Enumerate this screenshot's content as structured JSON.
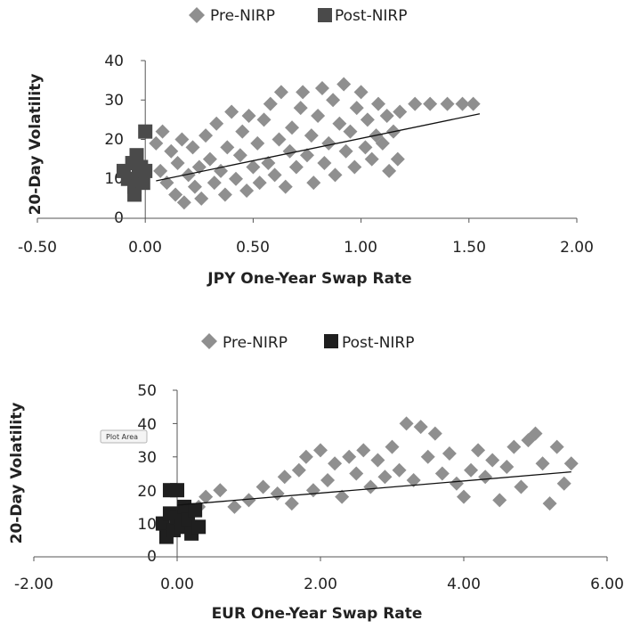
{
  "colors": {
    "pre_nirp": "#8f8f8f",
    "post_nirp_top": "#4a4a4a",
    "post_nirp_bottom": "#1f1f1f",
    "trendline": "#111111",
    "axis": "#555555"
  },
  "tooltip": {
    "label": "Plot Area"
  },
  "chart_data": [
    {
      "type": "scatter",
      "title": "",
      "xlabel": "JPY One-Year Swap Rate",
      "ylabel": "20-Day Volatility",
      "xlim": [
        -0.5,
        2.0
      ],
      "ylim": [
        0,
        40
      ],
      "xticks": [
        -0.5,
        0,
        0.5,
        1.0,
        1.5,
        2.0
      ],
      "xtick_labels": [
        "-0.50",
        "0.00",
        "0.50",
        "1.00",
        "1.50",
        "2.00"
      ],
      "yticks": [
        0,
        10,
        20,
        30,
        40
      ],
      "ytick_labels": [
        "0",
        "10",
        "20",
        "30",
        "40"
      ],
      "legend": {
        "position": "top",
        "entries": [
          "Pre-NIRP",
          "Post-NIRP"
        ]
      },
      "grid": false,
      "trendline": {
        "x": [
          0.05,
          1.55
        ],
        "y": [
          9.5,
          26.5
        ]
      },
      "series": [
        {
          "name": "Pre-NIRP",
          "marker": "diamond",
          "points": [
            [
              0.05,
              19
            ],
            [
              0.07,
              12
            ],
            [
              0.08,
              22
            ],
            [
              0.1,
              9
            ],
            [
              0.12,
              17
            ],
            [
              0.14,
              6
            ],
            [
              0.15,
              14
            ],
            [
              0.17,
              20
            ],
            [
              0.18,
              4
            ],
            [
              0.2,
              11
            ],
            [
              0.22,
              18
            ],
            [
              0.23,
              8
            ],
            [
              0.25,
              13
            ],
            [
              0.26,
              5
            ],
            [
              0.28,
              21
            ],
            [
              0.3,
              15
            ],
            [
              0.32,
              9
            ],
            [
              0.33,
              24
            ],
            [
              0.35,
              12
            ],
            [
              0.37,
              6
            ],
            [
              0.38,
              18
            ],
            [
              0.4,
              27
            ],
            [
              0.42,
              10
            ],
            [
              0.44,
              16
            ],
            [
              0.45,
              22
            ],
            [
              0.47,
              7
            ],
            [
              0.48,
              26
            ],
            [
              0.5,
              13
            ],
            [
              0.52,
              19
            ],
            [
              0.53,
              9
            ],
            [
              0.55,
              25
            ],
            [
              0.57,
              14
            ],
            [
              0.58,
              29
            ],
            [
              0.6,
              11
            ],
            [
              0.62,
              20
            ],
            [
              0.63,
              32
            ],
            [
              0.65,
              8
            ],
            [
              0.67,
              17
            ],
            [
              0.68,
              23
            ],
            [
              0.7,
              13
            ],
            [
              0.72,
              28
            ],
            [
              0.73,
              32
            ],
            [
              0.75,
              16
            ],
            [
              0.77,
              21
            ],
            [
              0.78,
              9
            ],
            [
              0.8,
              26
            ],
            [
              0.82,
              33
            ],
            [
              0.83,
              14
            ],
            [
              0.85,
              19
            ],
            [
              0.87,
              30
            ],
            [
              0.88,
              11
            ],
            [
              0.9,
              24
            ],
            [
              0.92,
              34
            ],
            [
              0.93,
              17
            ],
            [
              0.95,
              22
            ],
            [
              0.97,
              13
            ],
            [
              0.98,
              28
            ],
            [
              1.0,
              32
            ],
            [
              1.02,
              18
            ],
            [
              1.03,
              25
            ],
            [
              1.05,
              15
            ],
            [
              1.07,
              21
            ],
            [
              1.08,
              29
            ],
            [
              1.1,
              19
            ],
            [
              1.12,
              26
            ],
            [
              1.13,
              12
            ],
            [
              1.15,
              22
            ],
            [
              1.17,
              15
            ],
            [
              1.18,
              27
            ],
            [
              1.25,
              29
            ],
            [
              1.32,
              29
            ],
            [
              1.4,
              29
            ],
            [
              1.47,
              29
            ],
            [
              1.52,
              29
            ]
          ]
        },
        {
          "name": "Post-NIRP",
          "marker": "square",
          "points": [
            [
              -0.1,
              12
            ],
            [
              -0.08,
              10
            ],
            [
              -0.06,
              14
            ],
            [
              -0.05,
              8
            ],
            [
              -0.04,
              16
            ],
            [
              -0.03,
              11
            ],
            [
              -0.02,
              13
            ],
            [
              -0.01,
              9
            ],
            [
              0.0,
              12
            ],
            [
              -0.05,
              6
            ],
            [
              0.0,
              22
            ]
          ]
        }
      ]
    },
    {
      "type": "scatter",
      "title": "",
      "xlabel": "EUR One-Year Swap Rate",
      "ylabel": "20-Day Volatility",
      "xlim": [
        -2.0,
        6.0
      ],
      "ylim": [
        0,
        50
      ],
      "xticks": [
        -2,
        0,
        2,
        4,
        6
      ],
      "xtick_labels": [
        "-2.00",
        "0.00",
        "2.00",
        "4.00",
        "6.00"
      ],
      "yticks": [
        0,
        10,
        20,
        30,
        40,
        50
      ],
      "ytick_labels": [
        "0",
        "10",
        "20",
        "30",
        "40",
        "50"
      ],
      "legend": {
        "position": "top",
        "entries": [
          "Pre-NIRP",
          "Post-NIRP"
        ]
      },
      "grid": false,
      "trendline": {
        "x": [
          0.0,
          5.5
        ],
        "y": [
          15.5,
          25.5
        ]
      },
      "series": [
        {
          "name": "Pre-NIRP",
          "marker": "diamond",
          "points": [
            [
              0.3,
              15
            ],
            [
              0.4,
              18
            ],
            [
              0.6,
              20
            ],
            [
              0.8,
              15
            ],
            [
              1.0,
              17
            ],
            [
              1.2,
              21
            ],
            [
              1.4,
              19
            ],
            [
              1.5,
              24
            ],
            [
              1.6,
              16
            ],
            [
              1.7,
              26
            ],
            [
              1.8,
              30
            ],
            [
              1.9,
              20
            ],
            [
              2.0,
              32
            ],
            [
              2.1,
              23
            ],
            [
              2.2,
              28
            ],
            [
              2.3,
              18
            ],
            [
              2.4,
              30
            ],
            [
              2.5,
              25
            ],
            [
              2.6,
              32
            ],
            [
              2.7,
              21
            ],
            [
              2.8,
              29
            ],
            [
              2.9,
              24
            ],
            [
              3.0,
              33
            ],
            [
              3.1,
              26
            ],
            [
              3.2,
              40
            ],
            [
              3.3,
              23
            ],
            [
              3.4,
              39
            ],
            [
              3.5,
              30
            ],
            [
              3.6,
              37
            ],
            [
              3.7,
              25
            ],
            [
              3.8,
              31
            ],
            [
              3.9,
              22
            ],
            [
              4.0,
              18
            ],
            [
              4.1,
              26
            ],
            [
              4.2,
              32
            ],
            [
              4.3,
              24
            ],
            [
              4.4,
              29
            ],
            [
              4.5,
              17
            ],
            [
              4.6,
              27
            ],
            [
              4.7,
              33
            ],
            [
              4.8,
              21
            ],
            [
              4.9,
              35
            ],
            [
              5.0,
              37
            ],
            [
              5.1,
              28
            ],
            [
              5.2,
              16
            ],
            [
              5.3,
              33
            ],
            [
              5.4,
              22
            ],
            [
              5.5,
              28
            ]
          ]
        },
        {
          "name": "Post-NIRP",
          "marker": "square",
          "points": [
            [
              -0.2,
              10
            ],
            [
              -0.15,
              6
            ],
            [
              -0.1,
              13
            ],
            [
              -0.05,
              8
            ],
            [
              0.0,
              12
            ],
            [
              0.05,
              9
            ],
            [
              0.1,
              15
            ],
            [
              0.15,
              11
            ],
            [
              0.2,
              7
            ],
            [
              0.25,
              14
            ],
            [
              0.3,
              9
            ],
            [
              -0.1,
              20
            ],
            [
              0.0,
              20
            ]
          ]
        }
      ]
    }
  ]
}
